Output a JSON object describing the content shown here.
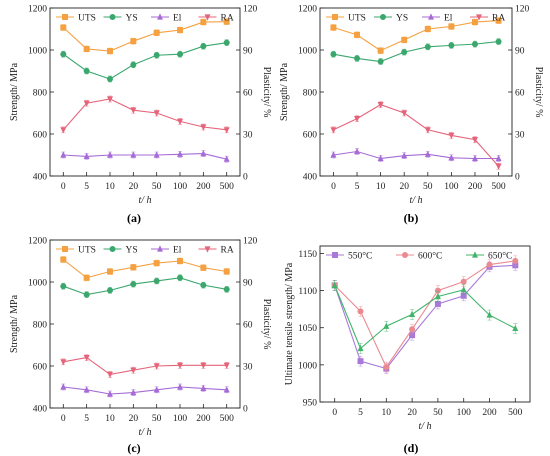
{
  "chart_data": [
    {
      "panel_label": "(a)",
      "type": "line",
      "categories": [
        "0",
        "5",
        "10",
        "20",
        "50",
        "100",
        "200",
        "500"
      ],
      "xlabel": "t/ h",
      "ylabel": "Strength/ MPa",
      "y2label": "Plasticity/ %",
      "ylim": [
        400,
        1200
      ],
      "yticks": [
        "400",
        "600",
        "800",
        "1000",
        "1200"
      ],
      "y2lim": [
        0,
        120
      ],
      "y2ticks": [
        "0",
        "30",
        "60",
        "90",
        "120"
      ],
      "legend_position": "top",
      "series": [
        {
          "name": "UTS",
          "axis": "left",
          "color": "#f5a142",
          "marker": "square",
          "values": [
            1107,
            1005,
            995,
            1042,
            1082,
            1095,
            1133,
            1135
          ]
        },
        {
          "name": "YS",
          "axis": "left",
          "color": "#3aa76d",
          "marker": "circle",
          "values": [
            980,
            900,
            862,
            930,
            975,
            980,
            1018,
            1035
          ]
        },
        {
          "name": "El",
          "axis": "right",
          "color": "#a66bd6",
          "marker": "triangle",
          "values": [
            15,
            14,
            15,
            15,
            15,
            15.5,
            16,
            12
          ]
        },
        {
          "name": "RA",
          "axis": "right",
          "color": "#e5647a",
          "marker": "triangle-down",
          "values": [
            33,
            52,
            55,
            47,
            45,
            39,
            35,
            33
          ]
        }
      ]
    },
    {
      "panel_label": "(b)",
      "type": "line",
      "categories": [
        "0",
        "5",
        "10",
        "20",
        "50",
        "100",
        "200",
        "500"
      ],
      "xlabel": "t/ h",
      "ylabel": "Strength/ MPa",
      "y2label": "Plasticity/ %",
      "ylim": [
        400,
        1200
      ],
      "yticks": [
        "400",
        "600",
        "800",
        "1000",
        "1200"
      ],
      "y2lim": [
        0,
        120
      ],
      "y2ticks": [
        "0",
        "30",
        "60",
        "90",
        "120"
      ],
      "legend_position": "top",
      "series": [
        {
          "name": "UTS",
          "axis": "left",
          "color": "#f5a142",
          "marker": "square",
          "values": [
            1107,
            1072,
            997,
            1048,
            1100,
            1112,
            1133,
            1140
          ]
        },
        {
          "name": "YS",
          "axis": "left",
          "color": "#3aa76d",
          "marker": "circle",
          "values": [
            980,
            960,
            945,
            990,
            1015,
            1022,
            1028,
            1040
          ]
        },
        {
          "name": "El",
          "axis": "right",
          "color": "#a66bd6",
          "marker": "triangle",
          "values": [
            15,
            17.5,
            12.5,
            14.5,
            15.5,
            13,
            12.5,
            12.5
          ]
        },
        {
          "name": "RA",
          "axis": "right",
          "color": "#e5647a",
          "marker": "triangle-down",
          "values": [
            33,
            41,
            51,
            45,
            33,
            29,
            26,
            7
          ]
        }
      ]
    },
    {
      "panel_label": "(c)",
      "type": "line",
      "categories": [
        "0",
        "5",
        "10",
        "20",
        "50",
        "100",
        "200",
        "500"
      ],
      "xlabel": "t/ h",
      "ylabel": "Strength/ MPa",
      "y2label": "Plasticity/ %",
      "ylim": [
        400,
        1200
      ],
      "yticks": [
        "400",
        "600",
        "800",
        "1000",
        "1200"
      ],
      "y2lim": [
        0,
        120
      ],
      "y2ticks": [
        "0",
        "30",
        "60",
        "90",
        "120"
      ],
      "legend_position": "top",
      "series": [
        {
          "name": "UTS",
          "axis": "left",
          "color": "#f5a142",
          "marker": "square",
          "values": [
            1107,
            1020,
            1050,
            1070,
            1090,
            1100,
            1068,
            1050
          ]
        },
        {
          "name": "YS",
          "axis": "left",
          "color": "#3aa76d",
          "marker": "circle",
          "values": [
            980,
            940,
            960,
            990,
            1005,
            1020,
            985,
            965
          ]
        },
        {
          "name": "El",
          "axis": "right",
          "color": "#a66bd6",
          "marker": "triangle",
          "values": [
            15,
            13,
            10,
            11,
            13,
            15,
            14,
            13
          ]
        },
        {
          "name": "RA",
          "axis": "right",
          "color": "#e5647a",
          "marker": "triangle-down",
          "values": [
            33,
            36,
            24,
            27,
            30,
            30.5,
            30.5,
            30.5
          ]
        }
      ]
    },
    {
      "panel_label": "(d)",
      "type": "line",
      "categories": [
        "0",
        "5",
        "10",
        "20",
        "50",
        "100",
        "200",
        "500"
      ],
      "xlabel": "t/ h",
      "ylabel": "Ultimate tensile strength/ MPa",
      "ylim": [
        950,
        1160
      ],
      "yticks": [
        "950",
        "1000",
        "1050",
        "1100",
        "1150"
      ],
      "legend_position": "top",
      "series": [
        {
          "name": "550°C",
          "color": "#a879d9",
          "marker": "square",
          "values": [
            1107,
            1005,
            995,
            1040,
            1082,
            1093,
            1132,
            1134
          ]
        },
        {
          "name": "600°C",
          "color": "#ea8a90",
          "marker": "circle",
          "values": [
            1107,
            1072,
            997,
            1048,
            1100,
            1112,
            1135,
            1140
          ]
        },
        {
          "name": "650°C",
          "color": "#3fb56a",
          "marker": "triangle",
          "values": [
            1107,
            1022,
            1052,
            1068,
            1092,
            1101,
            1067,
            1049
          ]
        }
      ]
    }
  ]
}
